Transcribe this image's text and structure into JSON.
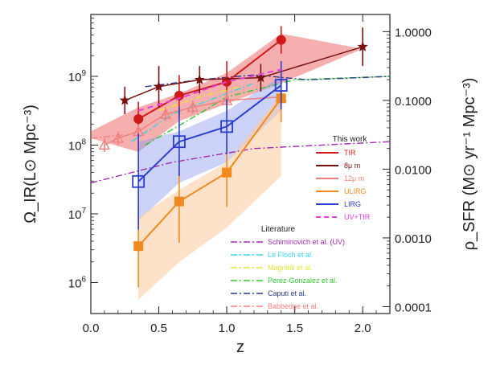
{
  "chart_data": {
    "type": "line",
    "xlabel": "z",
    "ylabel_left": "Ω_IR(L⊙ Mpc⁻³)",
    "ylabel_right": "ρ_SFR (M⊙ yr⁻¹ Mpc⁻³)",
    "xlim": [
      0.0,
      2.2
    ],
    "ylim_left_log10": [
      5.55,
      9.9
    ],
    "ylim_right_log10": [
      -4.1,
      0.25
    ],
    "x_ticks": [
      "0.0",
      "0.5",
      "1.0",
      "1.5",
      "2.0"
    ],
    "y_ticks_left": [
      {
        "exp": 6,
        "label_base": "10",
        "label_exp": "6"
      },
      {
        "exp": 7,
        "label_base": "10",
        "label_exp": "7"
      },
      {
        "exp": 8,
        "label_base": "10",
        "label_exp": "8"
      },
      {
        "exp": 9,
        "label_base": "10",
        "label_exp": "9"
      }
    ],
    "y_ticks_right": [
      {
        "exp": -4,
        "label": "0.0001"
      },
      {
        "exp": -3,
        "label": "0.0010"
      },
      {
        "exp": -2,
        "label": "0.0100"
      },
      {
        "exp": -1,
        "label": "0.1000"
      },
      {
        "exp": 0,
        "label": "1.0000"
      }
    ],
    "bands": [
      {
        "name": "TIR band",
        "color": "#ef6e6e",
        "opacity": 0.55,
        "x": [
          0.0,
          0.35,
          0.65,
          1.0,
          1.4,
          2.0
        ],
        "lo": [
          8.1,
          7.9,
          8.35,
          8.6,
          8.9,
          9.4
        ],
        "hi": [
          8.2,
          8.55,
          8.75,
          9.05,
          9.62,
          9.4
        ]
      },
      {
        "name": "LIRG band",
        "color": "#8d9cf0",
        "opacity": 0.45,
        "x": [
          0.35,
          0.65,
          1.0,
          1.4
        ],
        "lo": [
          6.9,
          7.45,
          7.75,
          8.5
        ],
        "hi": [
          8.05,
          8.2,
          8.5,
          9.0
        ]
      },
      {
        "name": "ULIRG band",
        "color": "#fbc99a",
        "opacity": 0.55,
        "x": [
          0.35,
          0.65,
          1.0,
          1.4
        ],
        "lo": [
          5.75,
          6.3,
          6.8,
          7.55
        ],
        "hi": [
          6.95,
          7.35,
          7.75,
          8.75
        ]
      }
    ],
    "series": [
      {
        "name": "TIR",
        "color": "#d01a1a",
        "marker": "circle",
        "width": 2,
        "x": [
          0.35,
          0.65,
          1.0,
          1.4
        ],
        "y": [
          8.38,
          8.72,
          8.92,
          9.53
        ],
        "yerr": [
          0.25,
          0.3,
          0.3,
          0.2
        ]
      },
      {
        "name": "8μ m",
        "color": "#7a1010",
        "marker": "star",
        "width": 1.5,
        "x": [
          0.25,
          0.5,
          0.8,
          1.25,
          2.0
        ],
        "y": [
          8.65,
          8.85,
          8.95,
          8.98,
          9.43
        ],
        "yerr": [
          0.2,
          0.3,
          0.2,
          0.2,
          0.28
        ]
      },
      {
        "name": "12μ m",
        "color": "#f08080",
        "marker": "triangle",
        "width": 1.5,
        "x": [
          0.1,
          0.2,
          0.35,
          0.55,
          0.75,
          1.0,
          1.4
        ],
        "y": [
          8.0,
          8.1,
          8.2,
          8.45,
          8.55,
          8.65,
          8.7
        ],
        "yerr": [
          0.1,
          0.1,
          0.1,
          0.1,
          0.1,
          0.15,
          0.15
        ]
      },
      {
        "name": "ULIRG",
        "color": "#f08a1e",
        "marker": "square-filled",
        "width": 2,
        "x": [
          0.35,
          0.65,
          1.0,
          1.4
        ],
        "y": [
          6.53,
          7.18,
          7.6,
          8.68
        ],
        "yerr": [
          0.6,
          0.6,
          0.5,
          0.35
        ]
      },
      {
        "name": "LIRG",
        "color": "#2a3dcc",
        "marker": "square-open",
        "width": 2,
        "x": [
          0.35,
          0.65,
          1.0,
          1.4
        ],
        "y": [
          7.47,
          8.05,
          8.27,
          8.87
        ],
        "yerr": [
          0.7,
          0.5,
          0.4,
          0.35
        ]
      },
      {
        "name": "UV+TIR",
        "color": "#e83ce0",
        "marker": "none",
        "dash": "7,5",
        "width": 2,
        "x": [
          0.35,
          0.65,
          1.0,
          1.4
        ],
        "y": [
          8.5,
          8.68,
          8.92,
          9.1
        ]
      }
    ],
    "literature": [
      {
        "name": "Schiminovich et al. (UV)",
        "color": "#a12bb0",
        "dash": "8,3,2,3",
        "x": [
          0.0,
          0.6,
          1.2,
          2.2
        ],
        "y": [
          7.45,
          7.75,
          7.95,
          8.05
        ]
      },
      {
        "name": "Le Floch et al.",
        "color": "#33d4e6",
        "dash": "8,3,2,3",
        "x": [
          0.3,
          0.6,
          1.0,
          1.2
        ],
        "y": [
          8.05,
          8.45,
          8.75,
          8.9
        ]
      },
      {
        "name": "Magnelli et al.",
        "color": "#e6e633",
        "dash": "8,3,2,3",
        "x": [
          0.5,
          0.8,
          1.1
        ],
        "y": [
          8.5,
          8.7,
          8.85
        ]
      },
      {
        "name": "Perez-Gonzalez et al.",
        "color": "#33c633",
        "dash": "8,3,2,3",
        "x": [
          0.4,
          0.75,
          1.0,
          1.5,
          2.2
        ],
        "y": [
          8.0,
          8.4,
          8.7,
          8.95,
          9.0
        ]
      },
      {
        "name": "Caputi et al.",
        "color": "#2b3a8a",
        "dash": "8,3,2,3",
        "x": [
          0.4,
          0.8,
          1.2,
          1.6,
          2.2
        ],
        "y": [
          8.85,
          8.95,
          9.02,
          8.95,
          9.0
        ]
      },
      {
        "name": "Babbedge et al.",
        "color": "#f08080",
        "dash": "8,3,2,3",
        "x": [
          0.0,
          0.25
        ],
        "y": [
          8.1,
          8.15
        ]
      }
    ],
    "legend_this_work": {
      "title": "This work",
      "entries": [
        {
          "label": "TIR",
          "color": "#d01a1a",
          "dash": ""
        },
        {
          "label": "8μ m",
          "color": "#7a1010",
          "dash": ""
        },
        {
          "label": "12μ m",
          "color": "#f08080",
          "dash": ""
        },
        {
          "label": "ULIRG",
          "color": "#f08a1e",
          "dash": ""
        },
        {
          "label": "LIRG",
          "color": "#2a3dcc",
          "dash": ""
        },
        {
          "label": "UV+TIR",
          "color": "#e83ce0",
          "dash": "6,4"
        }
      ]
    },
    "legend_literature": {
      "title": "Literature",
      "entries": [
        {
          "label": "Schiminovich et al. (UV)",
          "color": "#a12bb0"
        },
        {
          "label": "Le Floch et al.",
          "color": "#33d4e6"
        },
        {
          "label": "Magnelli et al.",
          "color": "#e6e633"
        },
        {
          "label": "Perez-Gonzalez et al.",
          "color": "#33c633"
        },
        {
          "label": "Caputi et al.",
          "color": "#2b3a8a"
        },
        {
          "label": "Babbedge et al.",
          "color": "#f08080"
        }
      ]
    }
  }
}
